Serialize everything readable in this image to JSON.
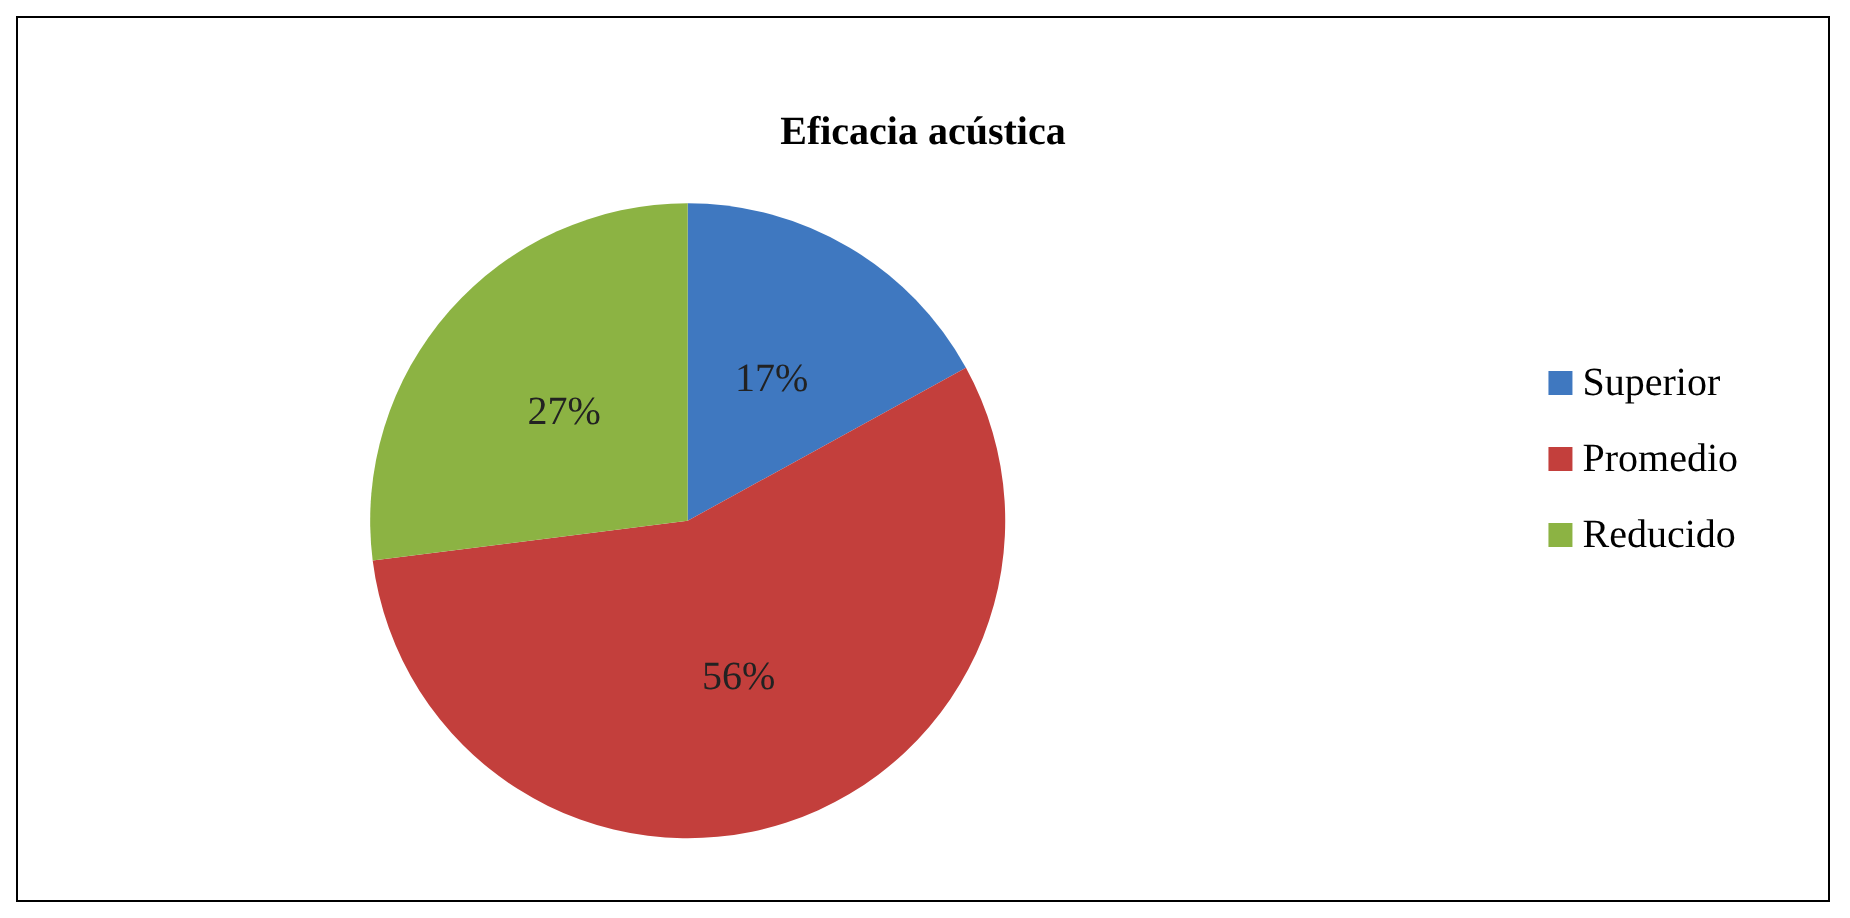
{
  "chart_data": {
    "type": "pie",
    "title": "Eficacia acústica",
    "categories": [
      "Superior",
      "Promedio",
      "Reducido"
    ],
    "values": [
      17,
      56,
      27
    ],
    "value_labels": [
      "17%",
      "56%",
      "27%"
    ],
    "colors": [
      "#3f78c0",
      "#c33f3c",
      "#8cb343"
    ],
    "legend": "right"
  }
}
